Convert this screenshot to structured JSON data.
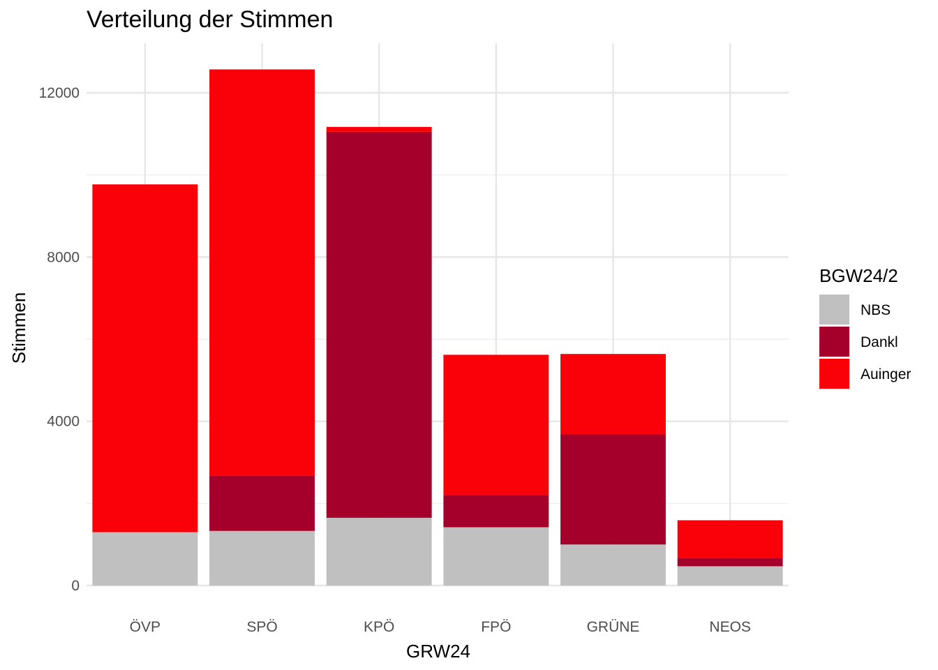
{
  "chart_data": {
    "type": "bar",
    "stacked": true,
    "title": "Verteilung der Stimmen",
    "xlabel": "GRW24",
    "ylabel": "Stimmen",
    "categories": [
      "ÖVP",
      "SPÖ",
      "KPÖ",
      "FPÖ",
      "GRÜNE",
      "NEOS"
    ],
    "ylim": [
      0,
      13000
    ],
    "yticks": [
      0,
      4000,
      8000,
      12000
    ],
    "yticks_minor": [
      2000,
      6000,
      10000
    ],
    "grid": true,
    "legend": {
      "title": "BGW24/2",
      "placement": "right"
    },
    "series": [
      {
        "name": "NBS",
        "color": "#c0c0c0",
        "values": [
          1300,
          1330,
          1650,
          1420,
          1000,
          470
        ]
      },
      {
        "name": "Dankl",
        "color": "#a5002c",
        "values": [
          0,
          1350,
          9400,
          780,
          2680,
          200
        ]
      },
      {
        "name": "Auinger",
        "color": "#fa0008",
        "values": [
          8470,
          9890,
          120,
          3420,
          1960,
          920
        ]
      }
    ]
  }
}
